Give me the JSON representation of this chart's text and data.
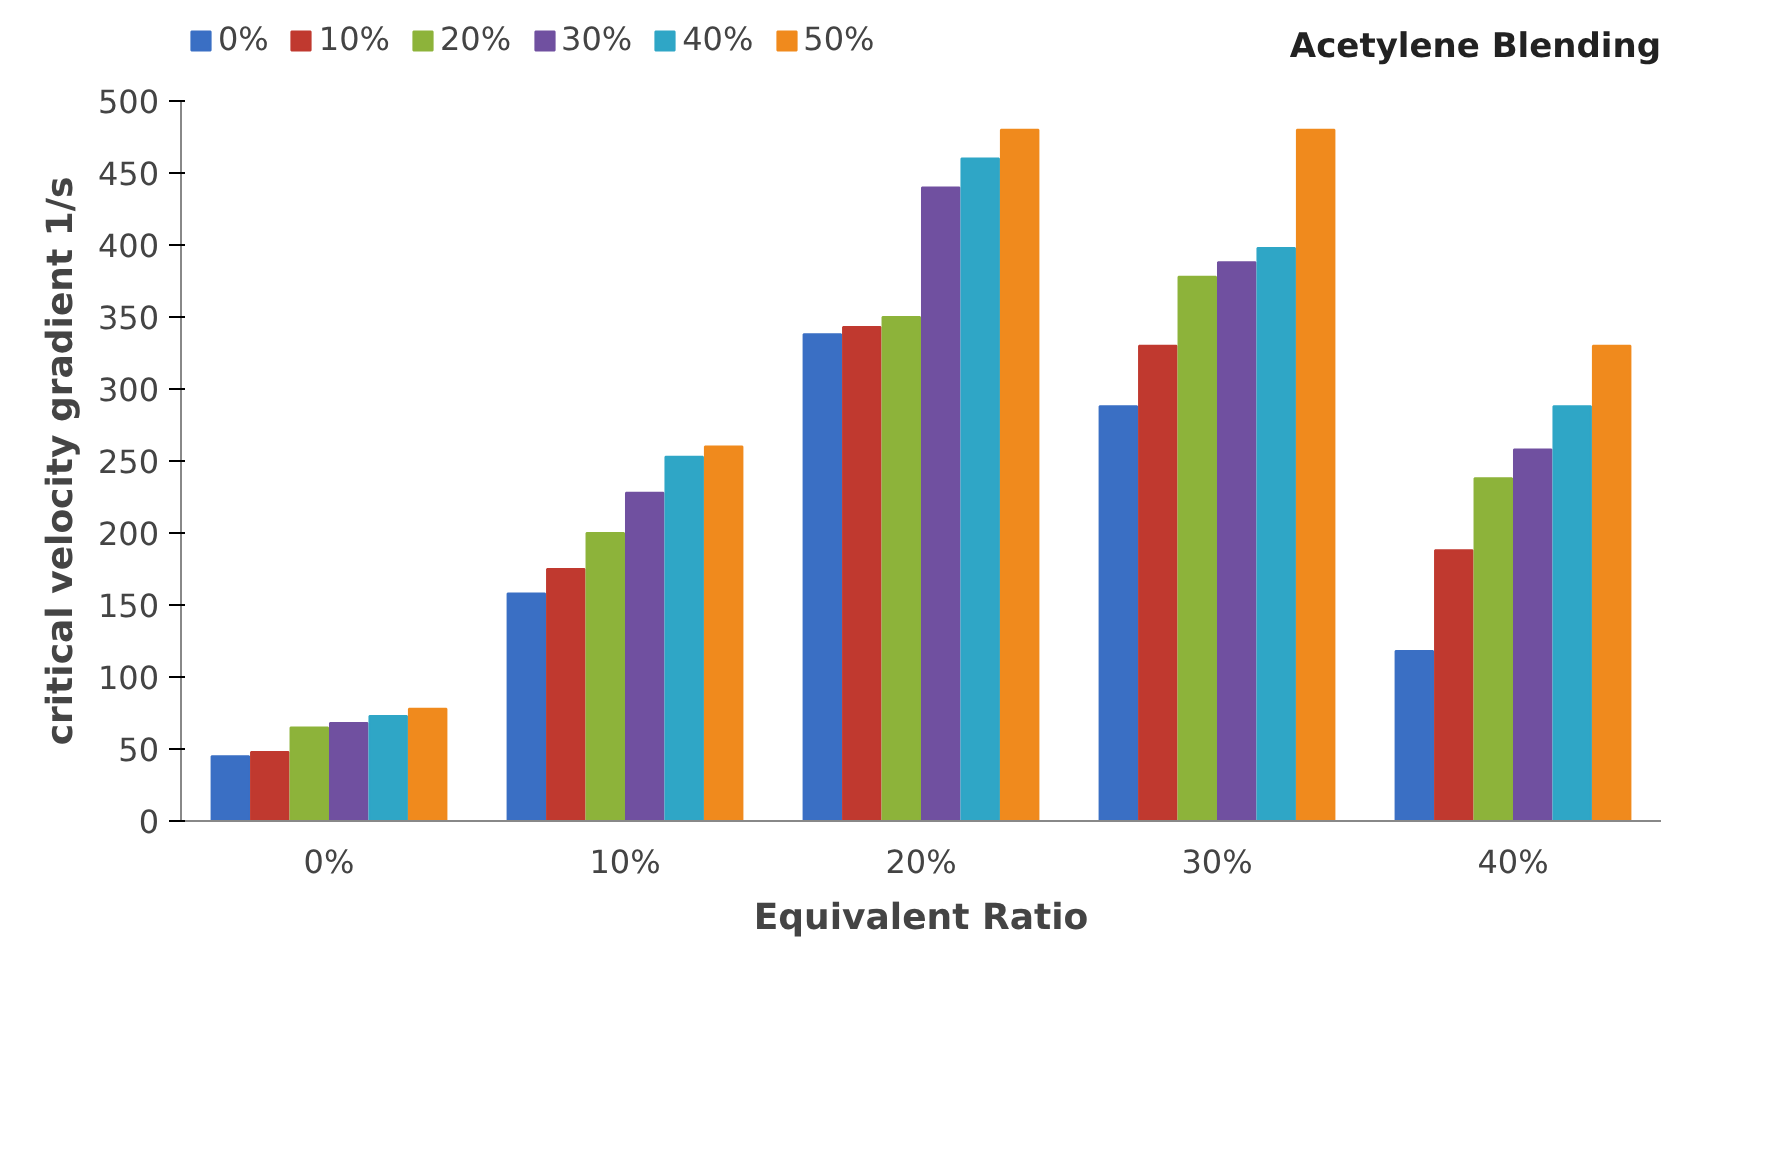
{
  "chart_data": {
    "type": "bar",
    "xlabel": "Equivalent Ratio",
    "ylabel": "critical velocity gradient 1/s",
    "legend_title": "Acetylene Blending",
    "categories": [
      "0%",
      "10%",
      "20%",
      "30%",
      "40%"
    ],
    "series": [
      {
        "name": "0%",
        "color": "#3a6fc4",
        "values": [
          45,
          158,
          338,
          288,
          118
        ]
      },
      {
        "name": "10%",
        "color": "#c0392f",
        "values": [
          48,
          175,
          343,
          330,
          188
        ]
      },
      {
        "name": "20%",
        "color": "#8db33a",
        "values": [
          65,
          200,
          350,
          378,
          238
        ]
      },
      {
        "name": "30%",
        "color": "#7050a0",
        "values": [
          68,
          228,
          440,
          388,
          258
        ]
      },
      {
        "name": "40%",
        "color": "#2fa6c6",
        "values": [
          73,
          253,
          460,
          398,
          288
        ]
      },
      {
        "name": "50%",
        "color": "#f08a1d",
        "values": [
          78,
          260,
          480,
          480,
          330
        ]
      }
    ],
    "ylim": [
      0,
      500
    ],
    "yticks": [
      0,
      50,
      100,
      150,
      200,
      250,
      300,
      350,
      400,
      450,
      500
    ],
    "grid": false,
    "legend": "top"
  }
}
